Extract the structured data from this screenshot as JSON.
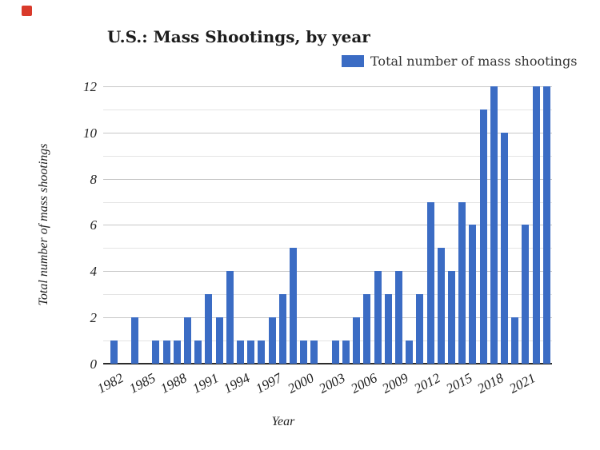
{
  "marker": {
    "color": "#d93a2b"
  },
  "chart_data": {
    "type": "bar",
    "title": "U.S.: Mass Shootings, by year",
    "legend_label": "Total number of mass shootings",
    "legend_position": "top-right",
    "xlabel": "Year",
    "ylabel": "Total number of mass shootings",
    "categories": [
      1982,
      1983,
      1984,
      1985,
      1986,
      1987,
      1988,
      1989,
      1990,
      1991,
      1992,
      1993,
      1994,
      1995,
      1996,
      1997,
      1998,
      1999,
      2000,
      2001,
      2002,
      2003,
      2004,
      2005,
      2006,
      2007,
      2008,
      2009,
      2010,
      2011,
      2012,
      2013,
      2014,
      2015,
      2016,
      2017,
      2018,
      2019,
      2020,
      2021,
      2022,
      2023
    ],
    "values": [
      1,
      0,
      2,
      0,
      1,
      1,
      1,
      2,
      1,
      3,
      2,
      4,
      1,
      1,
      1,
      2,
      3,
      5,
      1,
      1,
      0,
      1,
      1,
      2,
      3,
      4,
      3,
      4,
      1,
      3,
      7,
      5,
      4,
      7,
      6,
      11,
      12,
      10,
      2,
      6,
      12,
      12
    ],
    "ylim": [
      0,
      12
    ],
    "yticks": [
      0,
      2,
      4,
      6,
      8,
      10,
      12
    ],
    "xticks": [
      1982,
      1985,
      1988,
      1991,
      1994,
      1997,
      2000,
      2003,
      2006,
      2009,
      2012,
      2015,
      2018,
      2021
    ],
    "grid": true,
    "bar_color": "#3b6cc4"
  }
}
